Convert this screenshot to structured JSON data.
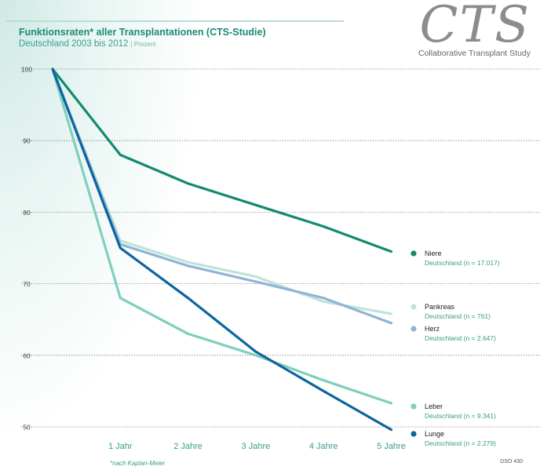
{
  "header": {
    "title": "Funktionsraten* aller Transplantationen (CTS-Studie)",
    "subtitle": "Deutschland 2003 bis 2012",
    "unit": "| Prozent"
  },
  "logo": {
    "mark": "CTS",
    "name": "Collaborative Transplant Study"
  },
  "footnote": "*nach Kaplan-Meier",
  "code": "DSO 430",
  "colors": {
    "niere": "#128a72",
    "pankreas": "#bfe3da",
    "herz": "#8fb4d6",
    "leber": "#7fcfbf",
    "lunge": "#0e64a0",
    "tick_text": "#3a9c8b",
    "grid": "#666666"
  },
  "chart_data": {
    "type": "line",
    "title": "Funktionsraten* aller Transplantationen (CTS-Studie)",
    "subtitle": "Deutschland 2003 bis 2012 | Prozent",
    "x": [
      0,
      1,
      2,
      3,
      4,
      5
    ],
    "x_tick_labels": [
      "1 Jahr",
      "2 Jahre",
      "3 Jahre",
      "4 Jahre",
      "5 Jahre"
    ],
    "y_ticks": [
      50,
      60,
      70,
      80,
      90,
      100
    ],
    "ylim": [
      50,
      100
    ],
    "xlabel": "",
    "ylabel": "Prozent",
    "grid": true,
    "series": [
      {
        "name": "Niere",
        "detail": "Deutschland (n = 17.017)",
        "color_key": "niere",
        "values": [
          100,
          88,
          84,
          81,
          78,
          74.5
        ]
      },
      {
        "name": "Pankreas",
        "detail": "Deutschland (n = 761)",
        "color_key": "pankreas",
        "values": [
          100,
          76,
          73,
          71,
          67.5,
          65.8
        ]
      },
      {
        "name": "Herz",
        "detail": "Deutschland (n = 2.647)",
        "color_key": "herz",
        "values": [
          100,
          75.5,
          72.5,
          70.3,
          68,
          64.5
        ]
      },
      {
        "name": "Leber",
        "detail": "Deutschland (n = 9.341)",
        "color_key": "leber",
        "values": [
          100,
          68,
          63,
          60,
          56.5,
          53.3
        ]
      },
      {
        "name": "Lunge",
        "detail": "Deutschland (n = 2.279)",
        "color_key": "lunge",
        "values": [
          100,
          75,
          68,
          60.5,
          55,
          49.6
        ]
      }
    ]
  }
}
